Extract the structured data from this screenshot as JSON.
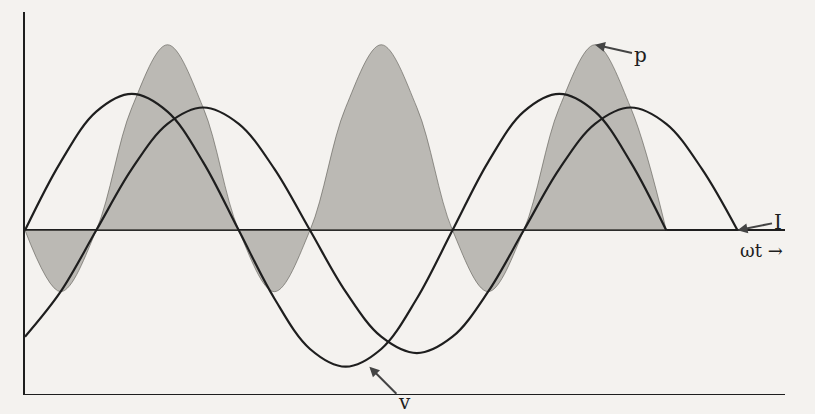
{
  "chart_data": {
    "type": "line",
    "xlabel": "ωt →",
    "x": [
      0,
      30,
      60,
      90,
      120,
      150,
      180,
      210,
      240,
      270,
      300,
      330,
      360,
      390,
      420,
      450,
      480,
      510,
      540,
      570,
      600
    ],
    "xlim": [
      0,
      640
    ],
    "ylim": [
      -1.2,
      1.6
    ],
    "tick_labels": false,
    "grid": false,
    "series": [
      {
        "name": "p",
        "type": "area",
        "color": "#8c8a84",
        "values": [
          0,
          -0.45,
          0,
          0.9,
          1.36,
          0.9,
          0,
          -0.45,
          0,
          0.9,
          1.36,
          0.9,
          0,
          -0.45,
          0,
          0.9,
          1.36,
          0.9,
          0,
          null,
          null
        ]
      },
      {
        "name": "v",
        "type": "line",
        "color": "#1e1e1e",
        "values": [
          0,
          0.5,
          0.87,
          1,
          0.87,
          0.5,
          0,
          -0.5,
          -0.87,
          -1,
          -0.87,
          -0.5,
          0,
          0.5,
          0.87,
          1,
          0.87,
          0.5,
          0,
          null,
          null
        ]
      },
      {
        "name": "I",
        "type": "line",
        "color": "#1e1e1e",
        "values": [
          -0.78,
          -0.45,
          0,
          0.45,
          0.78,
          0.9,
          0.78,
          0.45,
          0,
          -0.45,
          -0.78,
          -0.9,
          -0.78,
          -0.45,
          0,
          0.45,
          0.78,
          0.9,
          0.78,
          0.45,
          0
        ]
      }
    ]
  }
}
